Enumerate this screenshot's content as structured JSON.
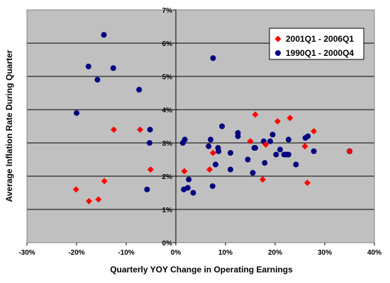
{
  "chart_data": {
    "type": "scatter",
    "xlabel": "Quarterly YOY Change in Operating Earnings",
    "ylabel": "Average Inflation Rate During Quarter",
    "xlim": [
      -30,
      40
    ],
    "ylim": [
      0,
      7
    ],
    "x_ticks": [
      -30,
      -20,
      -10,
      0,
      10,
      20,
      30,
      40
    ],
    "y_ticks": [
      0,
      1,
      2,
      3,
      4,
      5,
      6,
      7
    ],
    "x_tick_labels": [
      "-30%",
      "-20%",
      "-10%",
      "0%",
      "10%",
      "20%",
      "30%",
      "40%"
    ],
    "y_tick_labels": [
      "0%",
      "1%",
      "2%",
      "3%",
      "4%",
      "5%",
      "6%",
      "7%"
    ],
    "grid": "horizontal",
    "legend_position": "top-right",
    "colors": {
      "plot_background": "#c0c0c0",
      "grid": "#000000"
    },
    "series": [
      {
        "name": "2001Q1 - 2006Q1",
        "marker": "diamond",
        "color": "#ff0000",
        "x": [
          -20.1,
          -17.5,
          -15.6,
          -14.4,
          -12.5,
          -7.2,
          -5.1,
          1.7,
          6.8,
          7.5,
          15.0,
          16.0,
          17.5,
          18.1,
          20.5,
          23.0,
          26.0,
          26.5,
          27.8,
          35.0
        ],
        "y": [
          1.6,
          1.25,
          1.3,
          1.85,
          3.4,
          3.4,
          2.2,
          2.15,
          2.2,
          2.7,
          3.05,
          3.85,
          1.9,
          2.95,
          3.65,
          3.75,
          2.9,
          1.8,
          3.35,
          2.75
        ]
      },
      {
        "name": "1990Q1 - 2000Q4",
        "marker": "circle",
        "color": "#000080",
        "x": [
          -14.5,
          -17.6,
          -12.6,
          -15.8,
          -7.4,
          -20.0,
          -5.2,
          -5.3,
          -5.8,
          1.4,
          1.8,
          1.6,
          2.6,
          2.4,
          3.5,
          6.6,
          7.0,
          7.5,
          7.4,
          8.0,
          8.5,
          8.6,
          9.3,
          11.0,
          11.0,
          12.5,
          12.5,
          14.5,
          15.5,
          15.8,
          16.0,
          17.7,
          17.9,
          19.0,
          19.5,
          20.2,
          21.0,
          21.8,
          22.7,
          22.7,
          22.3,
          24.2,
          26.1,
          26.6,
          27.8,
          35.0
        ],
        "y": [
          6.25,
          5.3,
          5.25,
          4.9,
          4.6,
          3.9,
          3.4,
          3.0,
          1.6,
          3.0,
          3.1,
          1.6,
          1.9,
          1.65,
          1.5,
          2.9,
          3.1,
          5.55,
          1.7,
          2.35,
          2.85,
          2.75,
          3.5,
          2.7,
          2.2,
          3.3,
          3.2,
          2.5,
          2.1,
          2.85,
          2.85,
          3.05,
          2.4,
          3.05,
          3.25,
          2.65,
          2.8,
          2.65,
          3.1,
          2.65,
          2.65,
          2.35,
          3.15,
          3.2,
          2.75,
          2.75
        ]
      }
    ]
  }
}
